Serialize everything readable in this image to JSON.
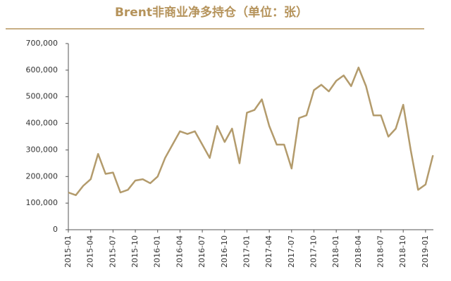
{
  "chart_data": {
    "type": "line",
    "title": "Brent非商业净多持仓（单位：张）",
    "categories": [
      "2015-01",
      null,
      null,
      "2015-04",
      null,
      null,
      "2015-07",
      null,
      null,
      "2015-10",
      null,
      null,
      "2016-01",
      null,
      null,
      "2016-04",
      null,
      null,
      "2016-07",
      null,
      null,
      "2016-10",
      null,
      null,
      "2017-01",
      null,
      null,
      "2017-04",
      null,
      null,
      "2017-07",
      null,
      null,
      "2017-10",
      null,
      null,
      "2018-01",
      null,
      null,
      "2018-04",
      null,
      null,
      "2018-07",
      null,
      null,
      "2018-10",
      null,
      null,
      "2019-01",
      null
    ],
    "series": [
      {
        "color": "#b39b6c",
        "values": [
          140000,
          130000,
          165000,
          190000,
          285000,
          210000,
          215000,
          140000,
          150000,
          185000,
          190000,
          175000,
          200000,
          270000,
          320000,
          370000,
          360000,
          370000,
          320000,
          270000,
          390000,
          330000,
          380000,
          250000,
          440000,
          450000,
          490000,
          390000,
          320000,
          320000,
          230000,
          420000,
          430000,
          525000,
          545000,
          520000,
          560000,
          580000,
          540000,
          610000,
          540000,
          430000,
          430000,
          350000,
          380000,
          470000,
          300000,
          150000,
          170000,
          280000
        ]
      }
    ],
    "ylim": [
      0,
      700000
    ],
    "yticks": [
      0,
      {
        "value": 100000,
        "label": "100,000"
      },
      {
        "value": 200000,
        "label": "200,000"
      },
      {
        "value": 300000,
        "label": "300,000"
      },
      {
        "value": 400000,
        "label": "400,000"
      },
      {
        "value": 500000,
        "label": "500,000"
      },
      {
        "value": 600000,
        "label": "600,000"
      },
      {
        "value": 700000,
        "label": "700,000"
      }
    ]
  }
}
